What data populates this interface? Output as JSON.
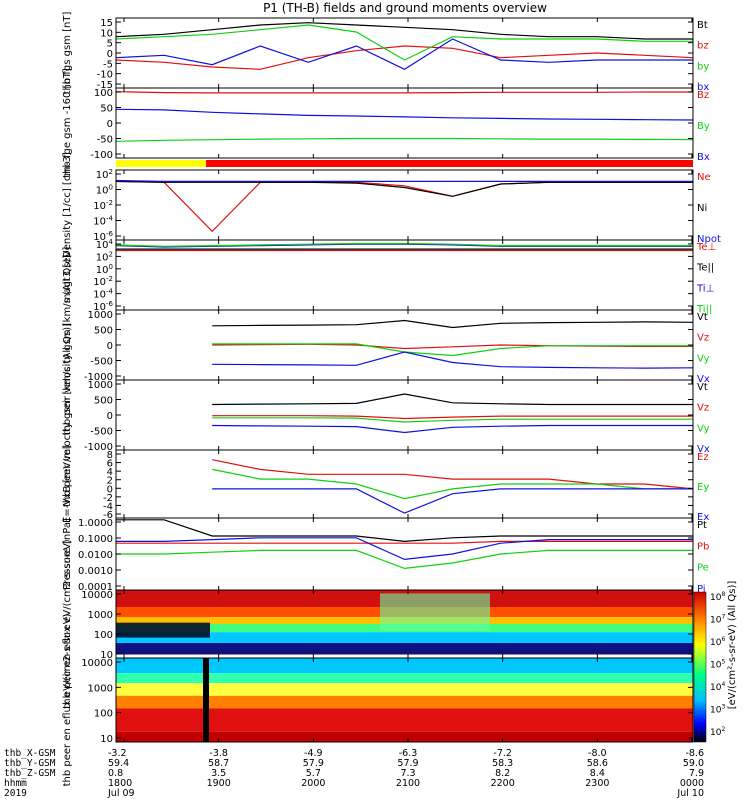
{
  "title": "P1 (TH-B) fields and ground moments overview",
  "colors": {
    "black": "#000000",
    "red": "#e01010",
    "green": "#10d010",
    "blue": "#1010e0",
    "yellow": "#ffff00",
    "barred": "#ff0000"
  },
  "time_axis": {
    "ticks": [
      "1800",
      "1900",
      "2000",
      "2100",
      "2200",
      "2300",
      "0000"
    ],
    "start_label": "2019  Jul 09",
    "end_label": "Jul 10",
    "rows": [
      {
        "label": "thb_X-GSM",
        "values": [
          "-3.2",
          "-3.8",
          "-4.9",
          "-6.3",
          "-7.2",
          "-8.0",
          "-8.6"
        ]
      },
      {
        "label": "thb_Y-GSM",
        "values": [
          "59.4",
          "58.7",
          "57.9",
          "57.9",
          "58.3",
          "58.6",
          "59.0"
        ]
      },
      {
        "label": "thb_Z-GSM",
        "values": [
          "0.8",
          "3.5",
          "5.7",
          "7.3",
          "8.2",
          "8.4",
          "7.9"
        ]
      },
      {
        "label": "hhmm",
        "values": [
          "1800",
          "1900",
          "2000",
          "2100",
          "2200",
          "2300",
          "0000"
        ]
      },
      {
        "label": "2019",
        "values": [
          "Jul 09",
          "",
          "",
          "",
          "",
          "",
          "Jul 10"
        ]
      }
    ]
  },
  "chart_data": [
    {
      "type": "line",
      "ylabel": "thb fgs gsm [nT]",
      "ylim": [
        -15,
        15
      ],
      "yticks": [
        "15",
        "10",
        "5",
        "0",
        "-5",
        "-10",
        "-15"
      ],
      "series": [
        {
          "name": "Bt",
          "color": "black",
          "values": [
            7,
            8,
            10,
            12,
            13,
            12,
            11,
            10,
            8,
            7,
            7,
            6,
            6
          ]
        },
        {
          "name": "bz",
          "color": "red",
          "values": [
            -3,
            -4,
            -6,
            -7,
            -2,
            1,
            3,
            2,
            -2,
            -1,
            0,
            -1,
            -2
          ]
        },
        {
          "name": "by",
          "color": "green",
          "values": [
            6,
            7,
            8,
            10,
            12,
            9,
            -3,
            7,
            6,
            6,
            6,
            5,
            5
          ]
        },
        {
          "name": "bx",
          "color": "blue",
          "values": [
            -2,
            -1,
            -5,
            3,
            -4,
            3,
            -7,
            6,
            -3,
            -4,
            -3,
            -3,
            -3
          ]
        }
      ]
    },
    {
      "type": "line",
      "ylabel": "thb fge gsm -160 [nT]",
      "ylim": [
        -130,
        100
      ],
      "yticks": [
        "100",
        "50",
        "0",
        "-50",
        "-100"
      ],
      "series": [
        {
          "name": "Bz",
          "color": "red",
          "values": [
            88,
            85,
            84,
            84,
            84,
            84,
            84,
            85,
            86,
            86,
            86,
            87,
            87
          ]
        },
        {
          "name": "By",
          "color": "green",
          "values": [
            -75,
            -72,
            -70,
            -68,
            -67,
            -66,
            -66,
            -66,
            -67,
            -68,
            -68,
            -69,
            -70
          ]
        },
        {
          "name": "Bx",
          "color": "blue",
          "values": [
            30,
            28,
            20,
            15,
            10,
            8,
            5,
            2,
            0,
            -2,
            -3,
            -4,
            -5
          ]
        }
      ]
    },
    {
      "type": "line",
      "ylabel": "Density [1/cc] [cm-3]",
      "ylim": [
        -6,
        2
      ],
      "log": true,
      "yticks": [
        "10^2",
        "10^0",
        "10^-2",
        "10^-4",
        "10^-6"
      ],
      "series": [
        {
          "name": "Ne",
          "color": "red",
          "values": [
            0.7,
            0.6,
            -5,
            0.6,
            0.6,
            0.6,
            0.2,
            -1,
            0.4,
            0.6,
            0.6,
            0.6,
            0.6
          ]
        },
        {
          "name": "Ni",
          "color": "black",
          "values": [
            0.7,
            0.6,
            0.6,
            0.6,
            0.6,
            0.5,
            0,
            -1,
            0.4,
            0.6,
            0.6,
            0.6,
            0.6
          ]
        },
        {
          "name": "Npot",
          "color": "blue",
          "values": [
            0.8,
            0.7,
            0.7,
            0.7,
            0.7,
            0.7,
            0.7,
            0.7,
            0.7,
            0.7,
            0.7,
            0.7,
            0.7
          ]
        }
      ]
    },
    {
      "type": "line",
      "ylabel": "magt3 [eV]",
      "ylim": [
        -6,
        4
      ],
      "log": true,
      "yticks": [
        "10^4",
        "10^2",
        "10^0",
        "10^-2",
        "10^-4",
        "10^-6"
      ],
      "series": [
        {
          "name": "Te⊥",
          "color": "red",
          "values": [
            2.5,
            2.5,
            2.5,
            2.5,
            2.5,
            2.5,
            2.5,
            2.5,
            2.5,
            2.5,
            2.5,
            2.5,
            2.5
          ]
        },
        {
          "name": "Te||",
          "color": "black",
          "values": [
            2.7,
            2.7,
            2.7,
            2.7,
            2.7,
            2.7,
            2.7,
            2.7,
            2.7,
            2.7,
            2.7,
            2.7,
            2.7
          ]
        },
        {
          "name": "Ti⊥",
          "color": "blue",
          "values": [
            3.2,
            3.0,
            3.1,
            3.2,
            3.3,
            3.4,
            3.4,
            3.3,
            3.1,
            3.1,
            3.1,
            3.1,
            3.1
          ]
        },
        {
          "name": "Ti||",
          "color": "green",
          "values": [
            3.3,
            3.1,
            3.2,
            3.3,
            3.4,
            3.5,
            3.5,
            3.4,
            3.2,
            3.2,
            3.2,
            3.2,
            3.2
          ]
        }
      ]
    },
    {
      "type": "line",
      "ylabel": "thb peir velocity gsm [km/s (All Qs)]",
      "ylim": [
        -1000,
        1000
      ],
      "yticks": [
        "1000",
        "500",
        "0",
        "-500",
        "-1000"
      ],
      "series": [
        {
          "name": "Vt",
          "color": "black",
          "values": [
            null,
            null,
            550,
            560,
            570,
            580,
            700,
            500,
            620,
            640,
            650,
            660,
            650
          ]
        },
        {
          "name": "Vz",
          "color": "red",
          "values": [
            null,
            null,
            0,
            10,
            20,
            0,
            -100,
            -50,
            0,
            -20,
            -30,
            -40,
            -40
          ]
        },
        {
          "name": "Vy",
          "color": "green",
          "values": [
            null,
            null,
            30,
            30,
            30,
            30,
            -200,
            -300,
            -100,
            -20,
            -20,
            -20,
            -20
          ]
        },
        {
          "name": "Vx",
          "color": "blue",
          "values": [
            null,
            null,
            -550,
            -560,
            -570,
            -580,
            -200,
            -500,
            -620,
            -640,
            -650,
            -660,
            -650
          ]
        }
      ]
    },
    {
      "type": "line",
      "ylabel": "thb peer velocity gsm [km/s (All Qs)]",
      "ylim": [
        -1000,
        1000
      ],
      "yticks": [
        "1000",
        "500",
        "0",
        "-500",
        "-1000"
      ],
      "series": [
        {
          "name": "Vt",
          "color": "black",
          "values": [
            null,
            null,
            300,
            310,
            320,
            330,
            600,
            350,
            320,
            300,
            300,
            300,
            300
          ]
        },
        {
          "name": "Vz",
          "color": "red",
          "values": [
            null,
            null,
            -20,
            -20,
            -20,
            -30,
            -100,
            -60,
            -30,
            -30,
            -30,
            -30,
            -30
          ]
        },
        {
          "name": "Vy",
          "color": "green",
          "values": [
            null,
            null,
            -80,
            -80,
            -80,
            -90,
            -200,
            -150,
            -120,
            -120,
            -120,
            -120,
            -120
          ]
        },
        {
          "name": "Vx",
          "color": "blue",
          "values": [
            null,
            null,
            -300,
            -310,
            -320,
            -330,
            -500,
            -350,
            -320,
            -300,
            -300,
            -300,
            -300
          ]
        }
      ]
    },
    {
      "type": "line",
      "ylabel": "E=-VxB [mV/m]",
      "ylim": [
        -6,
        8
      ],
      "yticks": [
        "8",
        "6",
        "4",
        "2",
        "0",
        "-2",
        "-4",
        "-6"
      ],
      "series": [
        {
          "name": "Ez",
          "color": "red",
          "values": [
            null,
            null,
            6,
            4,
            3,
            3,
            3,
            2,
            2,
            2,
            1,
            1,
            0
          ]
        },
        {
          "name": "Ey",
          "color": "green",
          "values": [
            null,
            null,
            4,
            2,
            2,
            1,
            -2,
            0,
            1,
            1,
            1,
            0,
            0
          ]
        },
        {
          "name": "Ex",
          "color": "blue",
          "values": [
            null,
            null,
            0,
            0,
            0,
            0,
            -5,
            -1,
            0,
            0,
            0,
            0,
            0
          ]
        }
      ]
    },
    {
      "type": "line",
      "ylabel": "Pressure [nPa]",
      "ylim": [
        -4,
        0
      ],
      "log": true,
      "yticks": [
        "1.0000",
        "0.1000",
        "0.0100",
        "0.0010",
        "0.0001"
      ],
      "series": [
        {
          "name": "Pt",
          "color": "black",
          "values": [
            -0.1,
            -0.1,
            -1.0,
            -1.0,
            -1.0,
            -1.0,
            -1.3,
            -1.1,
            -1.0,
            -1.0,
            -1.0,
            -1.0,
            -1.0
          ]
        },
        {
          "name": "Pb",
          "color": "red",
          "values": [
            -1.4,
            -1.4,
            -1.4,
            -1.4,
            -1.4,
            -1.4,
            -1.4,
            -1.4,
            -1.3,
            -1.3,
            -1.3,
            -1.3,
            -1.3
          ]
        },
        {
          "name": "Pe",
          "color": "green",
          "values": [
            -2,
            -2,
            -1.9,
            -1.8,
            -1.8,
            -1.8,
            -2.8,
            -2.5,
            -2.0,
            -1.8,
            -1.8,
            -1.8,
            -1.8
          ]
        },
        {
          "name": "Pi",
          "color": "blue",
          "values": [
            -1.3,
            -1.3,
            -1.2,
            -1.1,
            -1.1,
            -1.1,
            -2.3,
            -2.0,
            -1.4,
            -1.2,
            -1.2,
            -1.2,
            -1.2
          ]
        }
      ]
    },
    {
      "type": "heatmap",
      "ylabel": "thb peir en eflux eV/(cm2-s-sr-eV)",
      "ylim": [
        10,
        10000
      ],
      "log": true,
      "yticks": [
        "10000",
        "1000",
        "100",
        "10"
      ]
    },
    {
      "type": "heatmap",
      "ylabel": "thb peer en eflux eV/(cm2-s-sr-eV)",
      "ylim": [
        5,
        15000
      ],
      "log": true,
      "yticks": [
        "10000",
        "1000",
        "100",
        "10"
      ]
    }
  ],
  "colorbar": {
    "ticks": [
      "10^8",
      "10^7",
      "10^6",
      "10^5",
      "10^4",
      "10^3",
      "10^2"
    ],
    "label": "[eV/(cm²-s-sr-eV) (All Qs)]"
  }
}
